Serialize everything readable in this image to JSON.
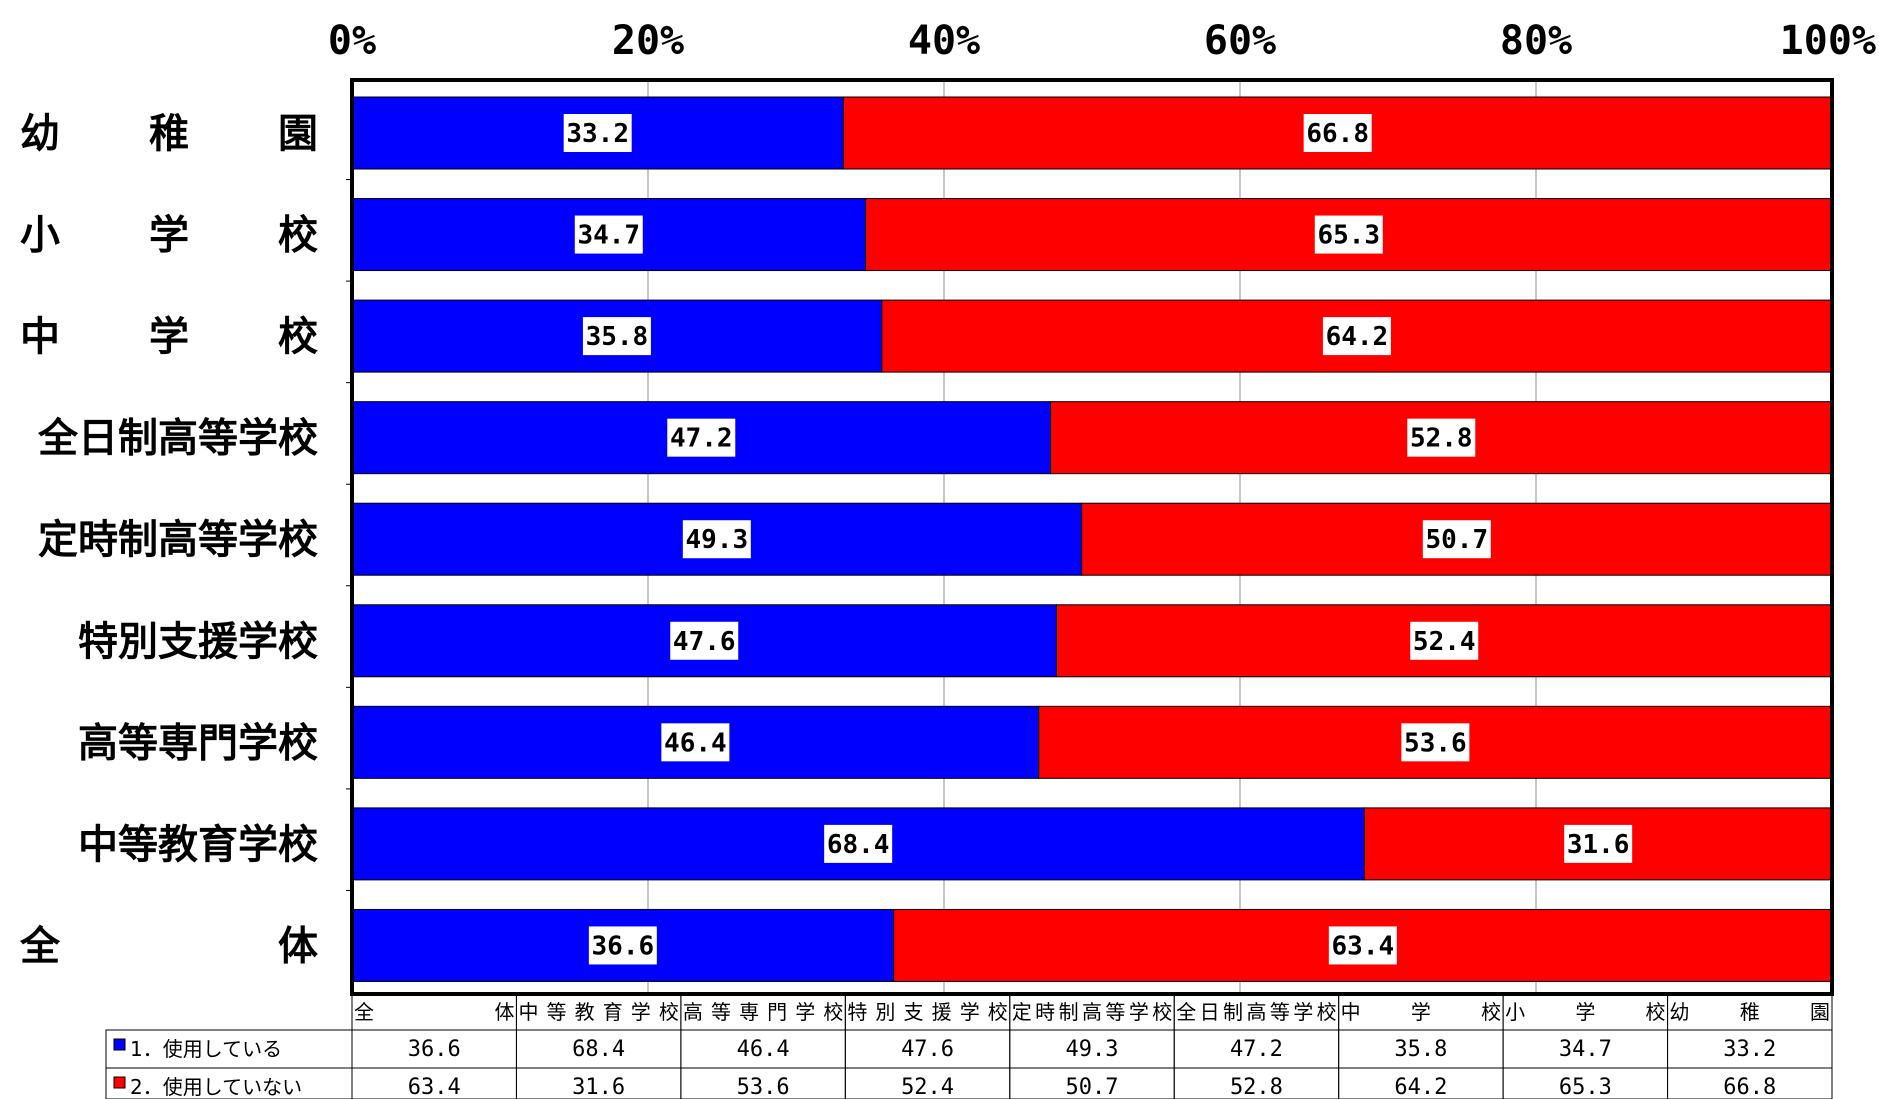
{
  "chart_data": {
    "type": "bar",
    "orientation": "horizontal",
    "stacked": "percent",
    "categories": [
      "幼　稚　園",
      "小　学　校",
      "中　学　校",
      "全日制高等学校",
      "定時制高等学校",
      "特別支援学校",
      "高等専門学校",
      "中等教育学校",
      "全　　　体"
    ],
    "series": [
      {
        "name": "1．使用している",
        "color": "#0000ff",
        "values": [
          33.2,
          34.7,
          35.8,
          47.2,
          49.3,
          47.6,
          46.4,
          68.4,
          36.6
        ]
      },
      {
        "name": "2．使用していない",
        "color": "#ff0000",
        "values": [
          66.8,
          65.3,
          64.2,
          52.8,
          50.7,
          52.4,
          53.6,
          31.6,
          63.4
        ]
      }
    ],
    "xticks": [
      "0%",
      "20%",
      "40%",
      "60%",
      "80%",
      "100%"
    ],
    "xlim": [
      0,
      100
    ],
    "grid": true,
    "data_table": {
      "columns": [
        "全　　　体",
        "中等教育学校",
        "高等専門学校",
        "特別支援学校",
        "定時制高等学校",
        "全日制高等学校",
        "中　学　校",
        "小　学　校",
        "幼　稚　園"
      ],
      "rows": [
        {
          "label": "1．使用している",
          "color": "#0000ff",
          "values": [
            "36.6",
            "68.4",
            "46.4",
            "47.6",
            "49.3",
            "47.2",
            "35.8",
            "34.7",
            "33.2"
          ]
        },
        {
          "label": "2．使用していない",
          "color": "#ff0000",
          "values": [
            "63.4",
            "31.6",
            "53.6",
            "52.4",
            "50.7",
            "52.8",
            "64.2",
            "65.3",
            "66.8"
          ]
        }
      ]
    }
  }
}
